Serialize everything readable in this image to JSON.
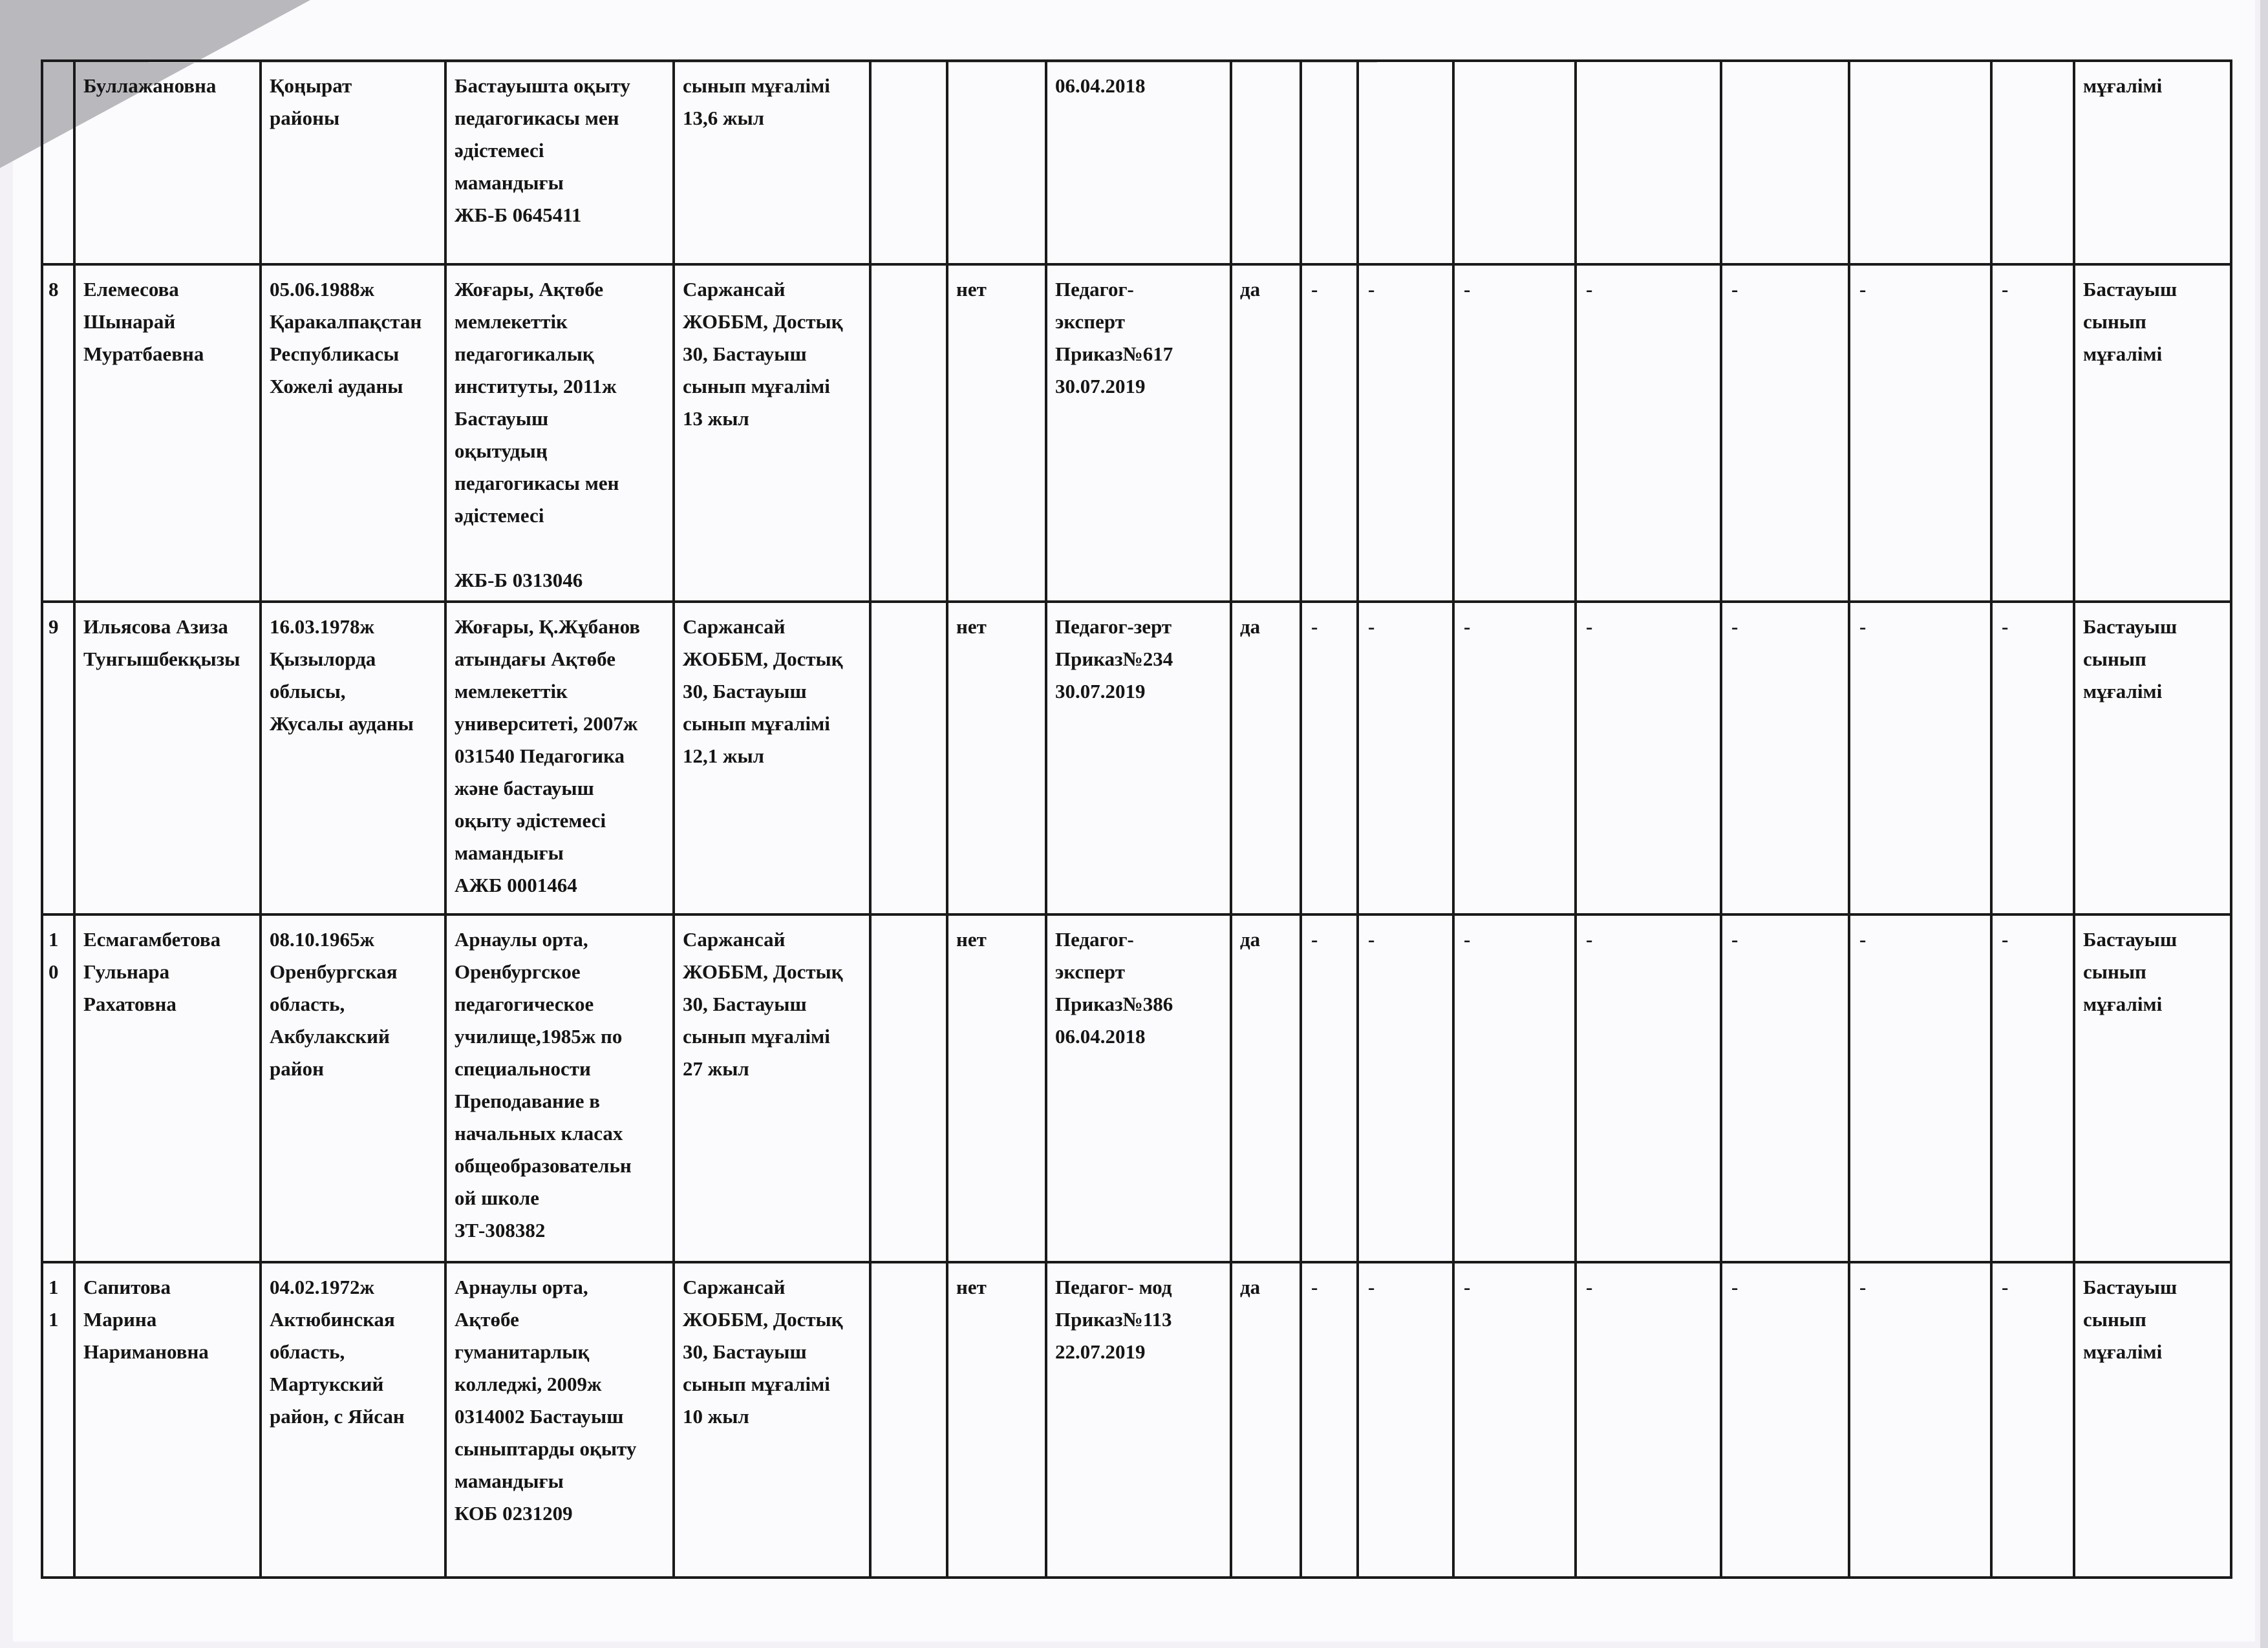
{
  "rows": [
    {
      "num": "",
      "name": "Буллажановна",
      "birth": "Қоңырат\nрайоны",
      "education": "Бастауышта оқыту\nпедагогикасы мен\nәдістемесі\nмамандығы\nЖБ-Б 0645411",
      "workplace": "сынып мұғалімі\n13,6 жыл",
      "extra": "",
      "certificate": "",
      "category": "06.04.2018",
      "yes": "",
      "dashes": [
        "",
        "",
        "",
        "",
        "",
        "",
        ""
      ],
      "position": "мұғалімі"
    },
    {
      "num": "8",
      "name": "Елемесова\nШынарай\nМуратбаевна",
      "birth": "05.06.1988ж\nҚаракалпақстан\nРеспубликасы\nХожелі ауданы",
      "education": "Жоғары, Ақтөбе\nмемлекеттік\nпедагогикалық\nинституты, 2011ж\nБастауыш\nоқытудың\nпедагогикасы мен\nәдістемесі\n\nЖБ-Б 0313046",
      "workplace": "Саржансай\nЖОББМ, Достық\n30, Бастауыш\nсынып мұғалімі\n13 жыл",
      "extra": "",
      "certificate": "нет",
      "category": "Педагог-\nэксперт\nПриказ№617\n30.07.2019",
      "yes": "да",
      "dashes": [
        "-",
        "-",
        "-",
        "-",
        "-",
        "-",
        "-"
      ],
      "position": "Бастауыш\nсынып\nмұғалімі"
    },
    {
      "num": "9",
      "name": "Ильясова Азиза\nТунгышбекқызы",
      "birth": "16.03.1978ж\nҚызылорда\nоблысы,\nЖусалы ауданы",
      "education": "Жоғары, Қ.Жұбанов\nатындағы Ақтөбе\nмемлекеттік\nуниверситеті, 2007ж\n031540 Педагогика\nжәне бастауыш\nоқыту әдістемесі\nмамандығы\nАЖБ 0001464",
      "workplace": "Саржансай\nЖОББМ, Достық\n30, Бастауыш\nсынып мұғалімі\n12,1 жыл",
      "extra": "",
      "certificate": "нет",
      "category": "Педагог-зерт\nПриказ№234\n30.07.2019",
      "yes": "да",
      "dashes": [
        "-",
        "-",
        "-",
        "-",
        "-",
        "-",
        "-"
      ],
      "position": "Бастауыш\nсынып\nмұғалімі"
    },
    {
      "num": "10",
      "name": "Есмагамбетова\nГульнара\nРахатовна",
      "birth": "08.10.1965ж\nОренбургская\nобласть,\nАкбулакский\nрайон",
      "education": "Арнаулы орта,\nОренбургское\nпедагогическое\nучилище,1985ж  по\nспециальности\nПреподавание в\nначальных класах\nобщеобразовательн\nой школе\nЗТ-308382",
      "workplace": "Саржансай\nЖОББМ, Достық\n30, Бастауыш\nсынып мұғалімі\n27 жыл",
      "extra": "",
      "certificate": "нет",
      "category": "Педагог-\nэксперт\nПриказ№386\n06.04.2018",
      "yes": "да",
      "dashes": [
        "-",
        "-",
        "-",
        "-",
        "-",
        "-",
        "-"
      ],
      "position": "Бастауыш\nсынып\nмұғалімі"
    },
    {
      "num": "11",
      "name": "Сапитова\nМарина\nНаримановна",
      "birth": "04.02.1972ж\nАктюбинская\nобласть,\nМартукский\nрайон, с Яйсан",
      "education": "Арнаулы орта,\nАқтөбе\nгуманитарлық\nколледжі, 2009ж\n0314002 Бастауыш\nсыныптарды оқыту\nмамандығы\nКОБ 0231209",
      "workplace": "Саржансай\nЖОББМ, Достық\n30, Бастауыш\nсынып мұғалімі\n10 жыл",
      "extra": "",
      "certificate": "нет",
      "category": "Педагог- мод\nПриказ№113\n22.07.2019",
      "yes": "да",
      "dashes": [
        "-",
        "-",
        "-",
        "-",
        "-",
        "-",
        "-"
      ],
      "position": "Бастауыш\nсынып\nмұғалімі"
    }
  ]
}
